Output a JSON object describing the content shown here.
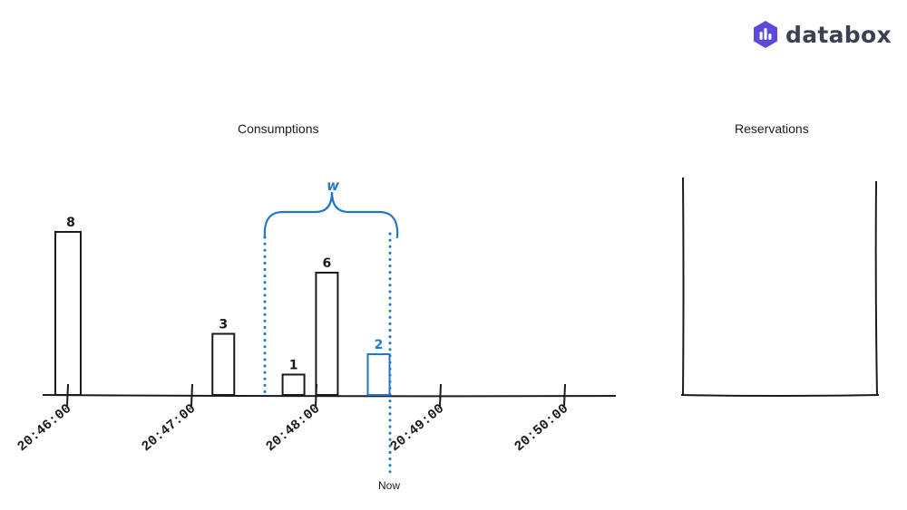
{
  "brand": {
    "name": "databox",
    "color": "#5b4bd8"
  },
  "consumptions": {
    "title": "Consumptions",
    "ticks": [
      "20:46:00",
      "20:47:00",
      "20:48:00",
      "20:49:00",
      "20:50:00"
    ],
    "bars": [
      {
        "value": 8,
        "label": "8",
        "time": "20:46:00",
        "color": "#1a1a1a"
      },
      {
        "value": 3,
        "label": "3",
        "time": "20:47:15",
        "color": "#1a1a1a"
      },
      {
        "value": 1,
        "label": "1",
        "time": "20:47:55",
        "color": "#1a1a1a"
      },
      {
        "value": 6,
        "label": "6",
        "time": "20:48:05",
        "color": "#1a1a1a"
      },
      {
        "value": 2,
        "label": "2",
        "time": "20:48:30",
        "color": "#1f78c8"
      }
    ],
    "window_label": "w",
    "now_label": "Now",
    "accent_color": "#1f78c8"
  },
  "reservations": {
    "title": "Reservations"
  }
}
